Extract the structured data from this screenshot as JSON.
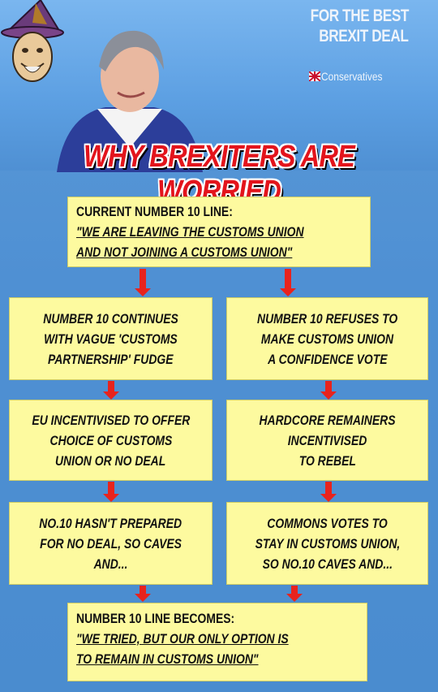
{
  "header": {
    "poster_line1": "FOR THE BEST",
    "poster_line2": "BREXIT DEAL",
    "party": "Conservatives"
  },
  "title": "WHY BREXITERS ARE WORRIED",
  "boxes": {
    "current": {
      "lead": "CURRENT NUMBER 10 LINE:",
      "quote1": "\"WE ARE LEAVING THE CUSTOMS UNION",
      "quote2": "AND NOT JOINING A CUSTOMS UNION\""
    },
    "left1": {
      "l1": "NUMBER 10 CONTINUES",
      "l2": "WITH VAGUE 'CUSTOMS",
      "l3": "PARTNERSHIP' FUDGE"
    },
    "right1": {
      "l1": "NUMBER 10 REFUSES TO",
      "l2": "MAKE CUSTOMS UNION",
      "l3": "A CONFIDENCE VOTE"
    },
    "left2": {
      "l1": "EU INCENTIVISED TO OFFER",
      "l2": "CHOICE OF CUSTOMS",
      "l3": "UNION OR NO DEAL"
    },
    "right2": {
      "l1": "HARDCORE REMAINERS",
      "l2": "INCENTIVISED",
      "l3": "TO REBEL"
    },
    "left3": {
      "l1": "NO.10 HASN'T PREPARED",
      "l2": "FOR NO DEAL, SO CAVES",
      "l3": "AND..."
    },
    "right3": {
      "l1": "COMMONS VOTES TO",
      "l2": "STAY IN CUSTOMS UNION,",
      "l3": "SO NO.10 CAVES AND..."
    },
    "final": {
      "lead": "NUMBER 10 LINE BECOMES:",
      "quote1": "\"WE TRIED, BUT OUR ONLY OPTION IS",
      "quote2": "TO REMAIN IN CUSTOMS UNION\""
    }
  },
  "colors": {
    "box": "#fdfa9f",
    "arrow": "#e8231d",
    "title": "#e3141c",
    "background": "#4f90d3"
  }
}
